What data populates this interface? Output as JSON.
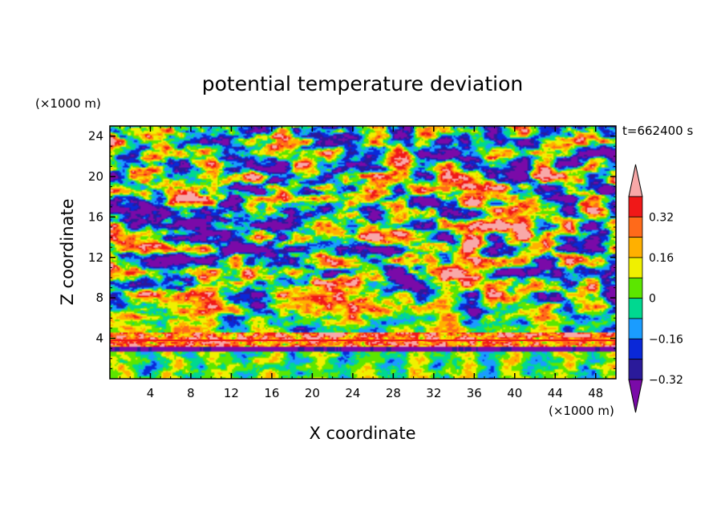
{
  "chart_data": {
    "type": "heatmap",
    "title": "potential temperature deviation",
    "xlabel": "X coordinate",
    "ylabel": "Z coordinate",
    "x_unit": "(×1000 m)",
    "y_unit": "(×1000 m)",
    "time_label": "t=662400 s",
    "xlim": [
      0,
      50
    ],
    "ylim": [
      0,
      25
    ],
    "x_ticks": [
      4,
      8,
      12,
      16,
      20,
      24,
      28,
      32,
      36,
      40,
      44,
      48
    ],
    "y_ticks": [
      4,
      8,
      12,
      16,
      20,
      24
    ],
    "colorbar": {
      "levels": [
        -0.4,
        -0.32,
        -0.24,
        -0.16,
        -0.08,
        0,
        0.08,
        0.16,
        0.24,
        0.32,
        0.4
      ],
      "labeled_values": [
        0.32,
        0.16,
        0,
        -0.16,
        -0.32
      ],
      "labels": [
        "0.32",
        "0.16",
        "0",
        "−0.16",
        "−0.32"
      ],
      "colors": [
        "#7a0aa8",
        "#2a1a9a",
        "#0a28d8",
        "#1a9cff",
        "#00d890",
        "#5ce600",
        "#f0f000",
        "#ffb000",
        "#ff6a1a",
        "#f01818",
        "#f8a8a8"
      ]
    }
  }
}
